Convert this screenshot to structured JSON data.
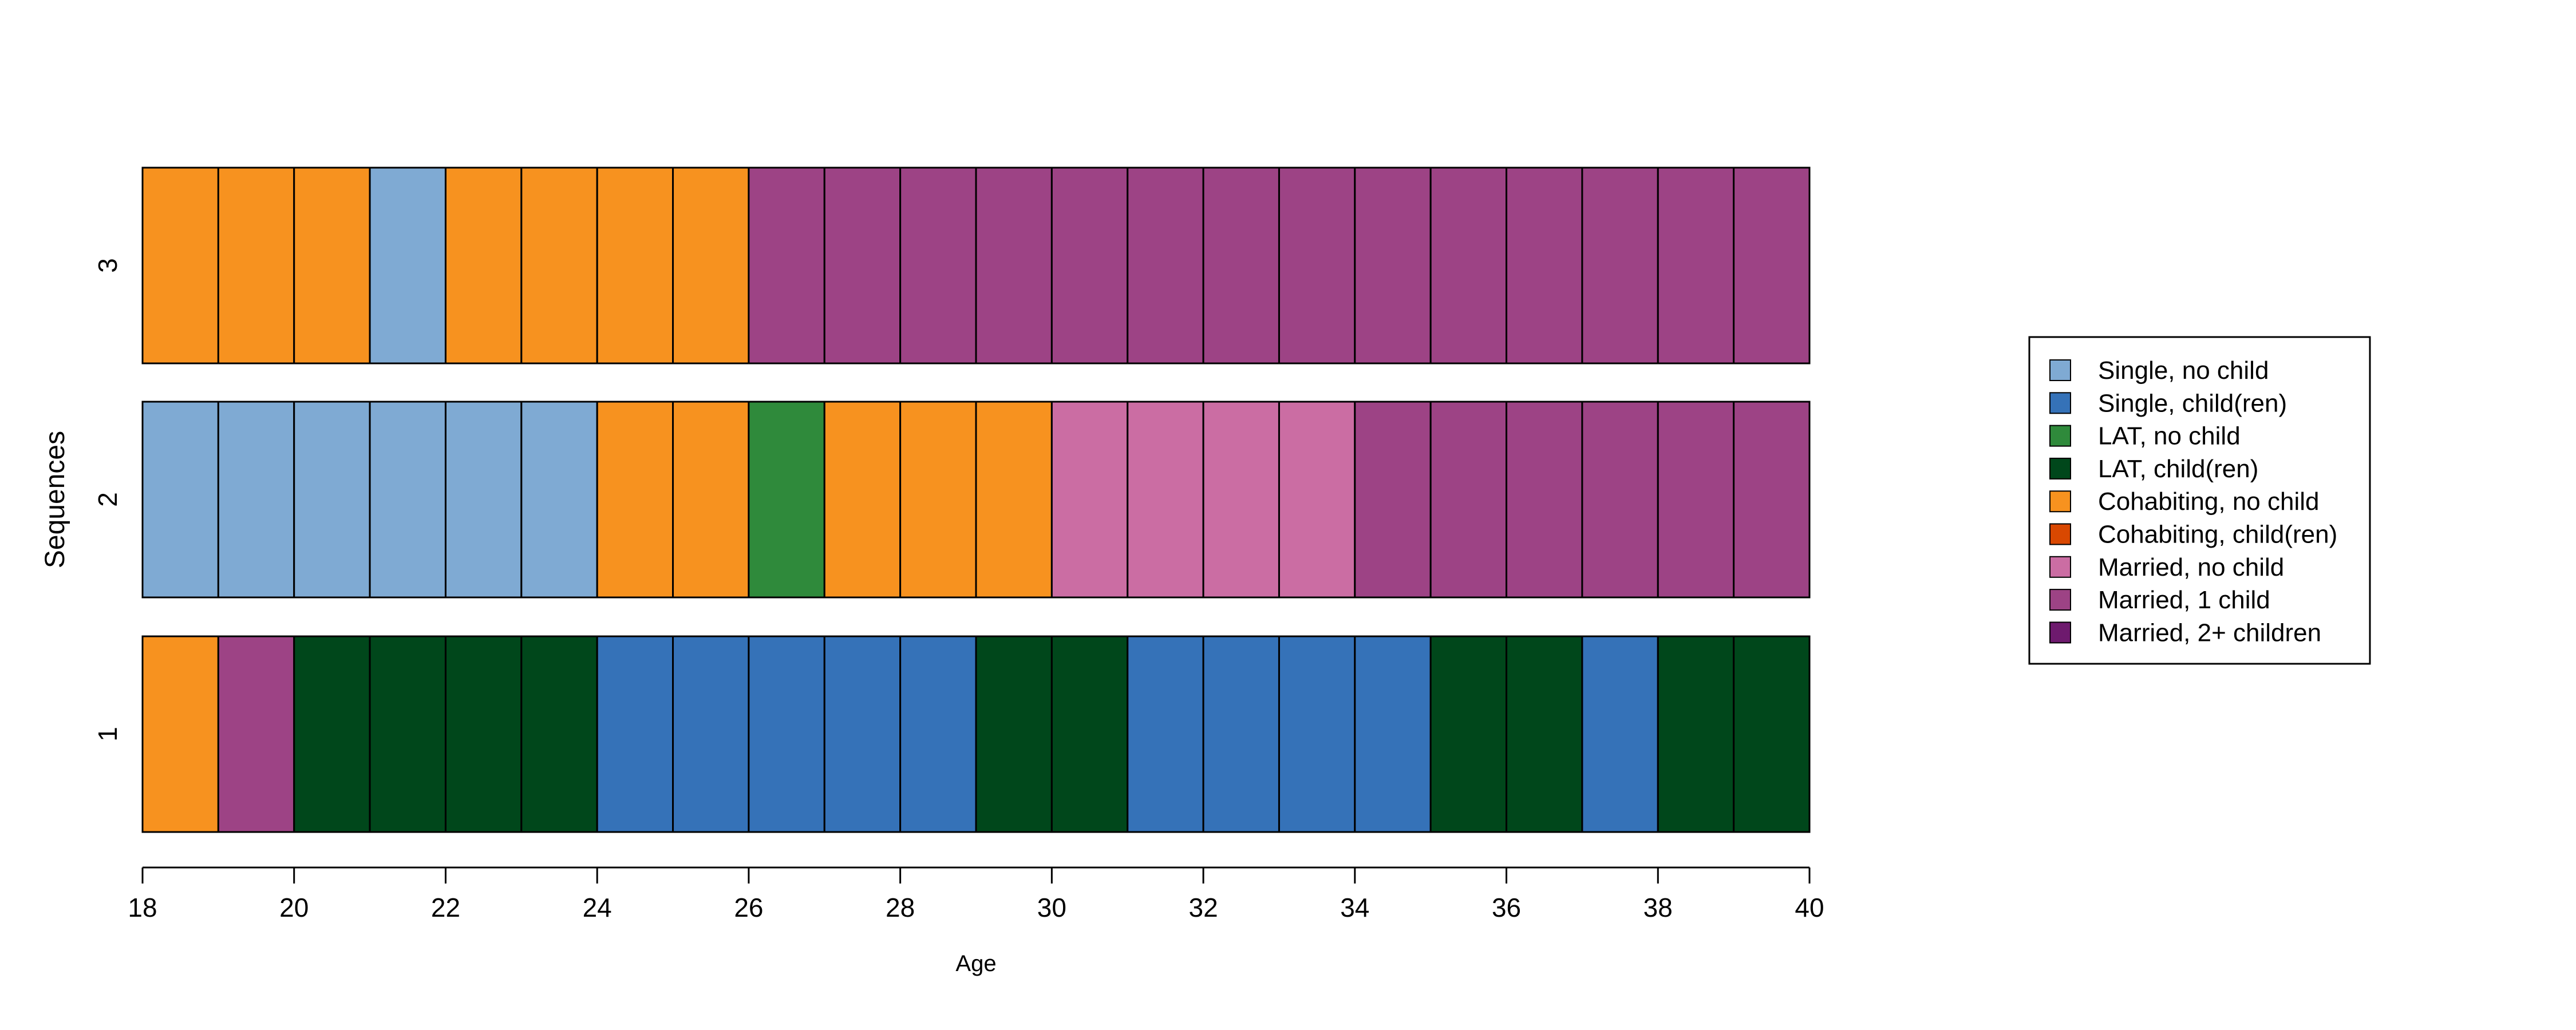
{
  "chart_data": {
    "type": "state-sequence",
    "xlabel": "Age",
    "ylabel": "Sequences",
    "xlim": [
      18,
      40
    ],
    "xticks": [
      18,
      20,
      22,
      24,
      26,
      28,
      30,
      32,
      34,
      36,
      38,
      40
    ],
    "row_labels": [
      "1",
      "2",
      "3"
    ],
    "legend_placement": "right",
    "states": [
      {
        "label": "Single, no child",
        "color": "#7FAAD3"
      },
      {
        "label": "Single, child(ren)",
        "color": "#3572B8"
      },
      {
        "label": "LAT, no child",
        "color": "#2F8A3B"
      },
      {
        "label": "LAT, child(ren)",
        "color": "#00471B"
      },
      {
        "label": "Cohabiting, no child",
        "color": "#F7921F"
      },
      {
        "label": "Cohabiting, child(ren)",
        "color": "#D94801"
      },
      {
        "label": "Married, no child",
        "color": "#CB6DA3"
      },
      {
        "label": "Married, 1 child",
        "color": "#9D4385"
      },
      {
        "label": "Married, 2+ children",
        "color": "#6E1A6E"
      }
    ],
    "sequences": [
      {
        "label": "1",
        "states": [
          "Cohabiting, no child",
          "Married, 1 child",
          "LAT, child(ren)",
          "LAT, child(ren)",
          "LAT, child(ren)",
          "LAT, child(ren)",
          "Single, child(ren)",
          "Single, child(ren)",
          "Single, child(ren)",
          "Single, child(ren)",
          "Single, child(ren)",
          "LAT, child(ren)",
          "LAT, child(ren)",
          "Single, child(ren)",
          "Single, child(ren)",
          "Single, child(ren)",
          "Single, child(ren)",
          "LAT, child(ren)",
          "LAT, child(ren)",
          "Single, child(ren)",
          "LAT, child(ren)",
          "LAT, child(ren)"
        ]
      },
      {
        "label": "2",
        "states": [
          "Single, no child",
          "Single, no child",
          "Single, no child",
          "Single, no child",
          "Single, no child",
          "Single, no child",
          "Cohabiting, no child",
          "Cohabiting, no child",
          "LAT, no child",
          "Cohabiting, no child",
          "Cohabiting, no child",
          "Cohabiting, no child",
          "Married, no child",
          "Married, no child",
          "Married, no child",
          "Married, no child",
          "Married, 1 child",
          "Married, 1 child",
          "Married, 1 child",
          "Married, 1 child",
          "Married, 1 child",
          "Married, 1 child"
        ]
      },
      {
        "label": "3",
        "states": [
          "Cohabiting, no child",
          "Cohabiting, no child",
          "Cohabiting, no child",
          "Single, no child",
          "Cohabiting, no child",
          "Cohabiting, no child",
          "Cohabiting, no child",
          "Cohabiting, no child",
          "Married, 1 child",
          "Married, 1 child",
          "Married, 1 child",
          "Married, 1 child",
          "Married, 1 child",
          "Married, 1 child",
          "Married, 1 child",
          "Married, 1 child",
          "Married, 1 child",
          "Married, 1 child",
          "Married, 1 child",
          "Married, 1 child",
          "Married, 1 child",
          "Married, 1 child"
        ]
      }
    ]
  }
}
